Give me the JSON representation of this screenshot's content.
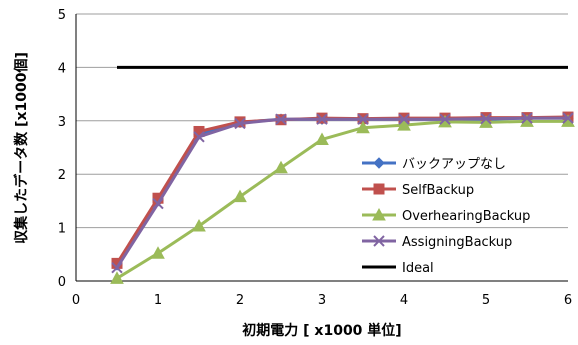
{
  "chart_data": {
    "type": "line",
    "title": "",
    "xlabel": "初期電力 [ x1000 単位]",
    "ylabel": "収集したデータ数 [x1000個]",
    "xlim": [
      0,
      6
    ],
    "ylim": [
      0,
      5
    ],
    "xticks": [
      0,
      1,
      2,
      3,
      4,
      5,
      6
    ],
    "yticks": [
      0,
      1,
      2,
      3,
      4,
      5
    ],
    "grid": "horizontal",
    "legend_position": "right",
    "series": [
      {
        "name": "バックアップなし",
        "color": "#4472c4",
        "marker": "diamond",
        "x": [
          0.5,
          1,
          1.5,
          2,
          2.5,
          3,
          3.5,
          4,
          4.5,
          5,
          5.5,
          6
        ],
        "y": [
          0.3,
          1.5,
          2.75,
          2.97,
          3.03,
          3.03,
          3.03,
          3.03,
          3.03,
          3.03,
          3.05,
          3.05
        ]
      },
      {
        "name": "SelfBackup",
        "color": "#c0504d",
        "marker": "square",
        "x": [
          0.5,
          1,
          1.5,
          2,
          2.5,
          3,
          3.5,
          4,
          4.5,
          5,
          5.5,
          6
        ],
        "y": [
          0.33,
          1.55,
          2.8,
          2.98,
          3.02,
          3.05,
          3.04,
          3.05,
          3.05,
          3.06,
          3.06,
          3.07
        ]
      },
      {
        "name": "OverhearingBackup",
        "color": "#9bbb59",
        "marker": "triangle",
        "x": [
          0.5,
          1,
          1.5,
          2,
          2.5,
          3,
          3.5,
          4,
          4.5,
          5,
          5.5,
          6
        ],
        "y": [
          0.05,
          0.52,
          1.03,
          1.58,
          2.12,
          2.65,
          2.87,
          2.92,
          2.98,
          2.97,
          2.99,
          2.99
        ]
      },
      {
        "name": "AssigningBackup",
        "color": "#8064a2",
        "marker": "x",
        "x": [
          0.5,
          1,
          1.5,
          2,
          2.5,
          3,
          3.5,
          4,
          4.5,
          5,
          5.5,
          6
        ],
        "y": [
          0.25,
          1.45,
          2.7,
          2.95,
          3.03,
          3.03,
          3.03,
          3.03,
          3.03,
          3.04,
          3.05,
          3.05
        ]
      },
      {
        "name": "Ideal",
        "color": "#000000",
        "marker": "none",
        "x": [
          0.5,
          6
        ],
        "y": [
          4,
          4
        ]
      }
    ]
  }
}
